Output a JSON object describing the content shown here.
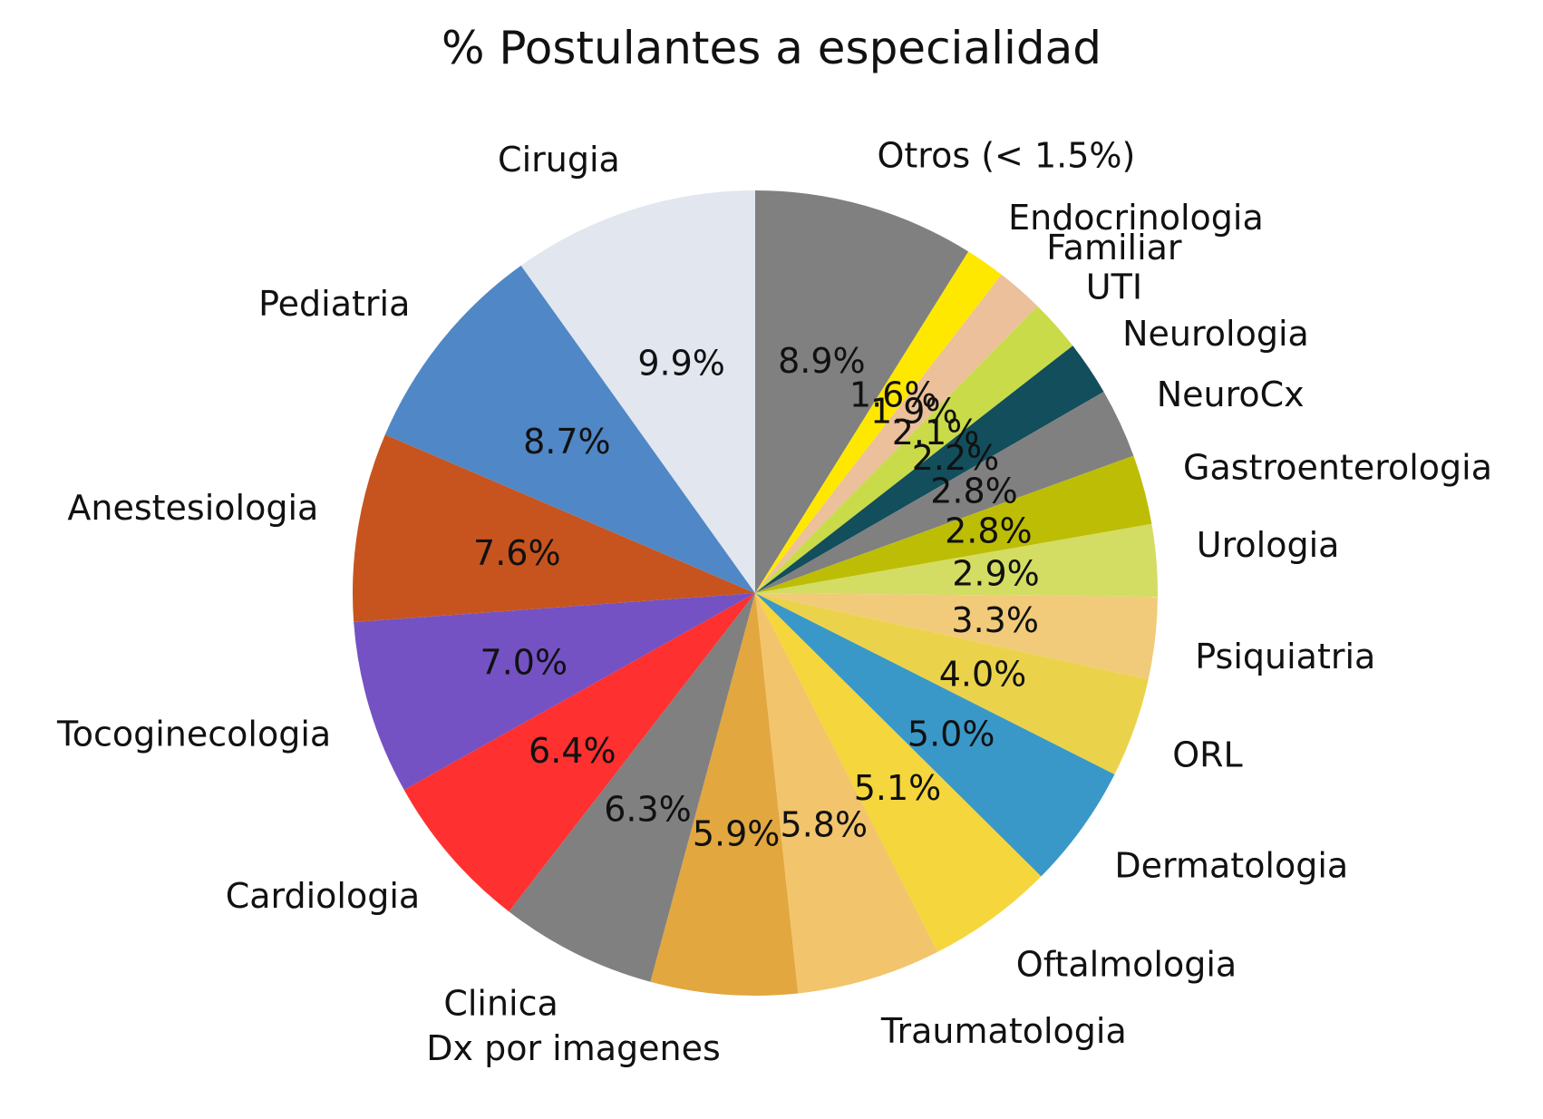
{
  "chart_data": {
    "type": "pie",
    "title": "% Postulantes a especialidad",
    "start_angle_deg": 90,
    "direction": "clockwise",
    "slices": [
      {
        "label": "Otros (< 1.5%)",
        "value": 8.9,
        "pct_label": "8.9%",
        "color": "#808080"
      },
      {
        "label": "Endocrinologia",
        "value": 1.6,
        "pct_label": "1.6%",
        "color": "#FFE800"
      },
      {
        "label": "Familiar",
        "value": 1.9,
        "pct_label": "1.9%",
        "color": "#EBC09A"
      },
      {
        "label": "UTI",
        "value": 2.1,
        "pct_label": "2.1%",
        "color": "#C9DB48"
      },
      {
        "label": "Neurologia",
        "value": 2.2,
        "pct_label": "2.2%",
        "color": "#124E5C"
      },
      {
        "label": "NeuroCx",
        "value": 2.8,
        "pct_label": "2.8%",
        "color": "#808080"
      },
      {
        "label": "Gastroenterologia",
        "value": 2.8,
        "pct_label": "2.8%",
        "color": "#BDBD06"
      },
      {
        "label": "Urologia",
        "value": 2.9,
        "pct_label": "2.9%",
        "color": "#D3DD63"
      },
      {
        "label": "Psiquiatria",
        "value": 3.3,
        "pct_label": "3.3%",
        "color": "#F2CB7A"
      },
      {
        "label": "ORL",
        "value": 4.0,
        "pct_label": "4.0%",
        "color": "#EAD34A"
      },
      {
        "label": "Dermatologia",
        "value": 5.0,
        "pct_label": "5.0%",
        "color": "#3A98C8"
      },
      {
        "label": "Oftalmologia",
        "value": 5.1,
        "pct_label": "5.1%",
        "color": "#F5D63C"
      },
      {
        "label": "Traumatologia",
        "value": 5.8,
        "pct_label": "5.8%",
        "color": "#F2C46C"
      },
      {
        "label": "Dx por imagenes",
        "value": 5.9,
        "pct_label": "5.9%",
        "color": "#E2A73F"
      },
      {
        "label": "Clinica",
        "value": 6.3,
        "pct_label": "6.3%",
        "color": "#808080"
      },
      {
        "label": "Cardiologia",
        "value": 6.4,
        "pct_label": "6.4%",
        "color": "#FF3030"
      },
      {
        "label": "Tocoginecologia",
        "value": 7.0,
        "pct_label": "7.0%",
        "color": "#7452C4"
      },
      {
        "label": "Anestesiologia",
        "value": 7.6,
        "pct_label": "7.6%",
        "color": "#C7541F"
      },
      {
        "label": "Pediatria",
        "value": 8.7,
        "pct_label": "8.7%",
        "color": "#5087C6"
      },
      {
        "label": "Cirugia",
        "value": 9.9,
        "pct_label": "9.9%",
        "color": "#E1E6EF"
      }
    ]
  }
}
